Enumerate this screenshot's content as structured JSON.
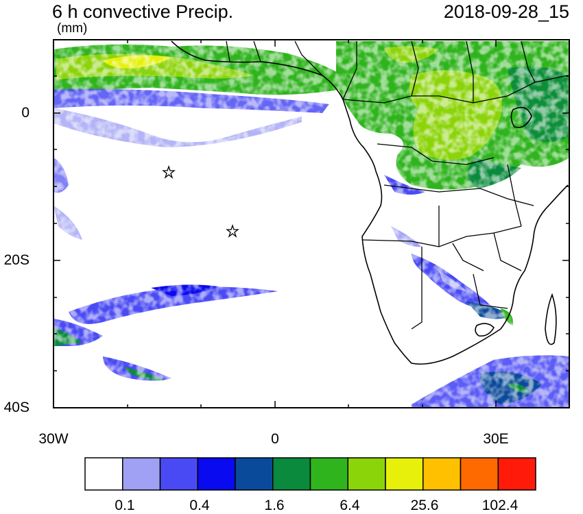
{
  "title": "6 h convective Precip.",
  "datetime": "2018-09-28_15",
  "units": "(mm)",
  "map": {
    "lon_range": [
      -30,
      40
    ],
    "lat_range": [
      -40,
      10
    ],
    "markers": [
      {
        "type": "star",
        "lon": -14.5,
        "lat": -8
      },
      {
        "type": "star",
        "lon": -5.7,
        "lat": -16
      }
    ]
  },
  "axes": {
    "y_labels": [
      "0",
      "20S",
      "40S"
    ],
    "x_labels": [
      "30W",
      "0",
      "30E"
    ]
  },
  "colorbar": {
    "colors": [
      "#ffffff",
      "#a0a0f5",
      "#4a4af5",
      "#0a0af0",
      "#0a4a9a",
      "#0a8a3c",
      "#30b41e",
      "#8cd40a",
      "#e6f00a",
      "#ffc000",
      "#ff6a00",
      "#ff1a0a"
    ],
    "labels": [
      "0.1",
      "0.4",
      "1.6",
      "6.4",
      "25.6",
      "102.4"
    ]
  }
}
